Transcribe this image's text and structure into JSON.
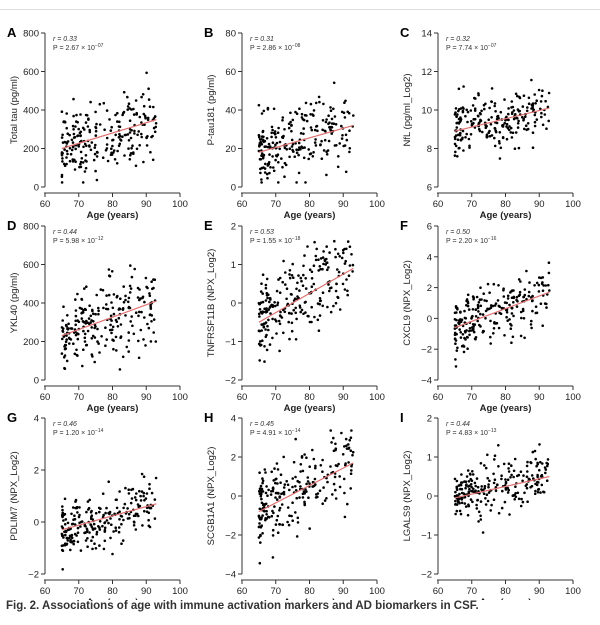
{
  "caption": {
    "label": "Fig. 2.",
    "text": "Associations of age with immune activation markers and AD biomarkers in CSF."
  },
  "colors": {
    "points": "#000000",
    "trend_line": "#e07070",
    "axes": "#333333"
  },
  "chart_data": [
    {
      "panel": "A",
      "type": "scatter",
      "xlabel": "Age (years)",
      "ylabel": "Total tau (pg/ml)",
      "xlim": [
        60,
        100
      ],
      "xticks": [
        60,
        70,
        80,
        90,
        100
      ],
      "ylim": [
        0,
        800
      ],
      "yticks": [
        0,
        200,
        400,
        600,
        800
      ],
      "r": "r = 0.33",
      "p": "P = 2.67 × 10",
      "p_exp": "−07",
      "trend": {
        "x": [
          65,
          93
        ],
        "y": [
          200,
          350
        ]
      },
      "spread": 90
    },
    {
      "panel": "B",
      "type": "scatter",
      "xlabel": "Age (years)",
      "ylabel": "P-tau181 (pg/ml)",
      "xlim": [
        60,
        100
      ],
      "xticks": [
        60,
        70,
        80,
        90,
        100
      ],
      "ylim": [
        0,
        80
      ],
      "yticks": [
        0,
        20,
        40,
        60,
        80
      ],
      "r": "r = 0.31",
      "p": "P = 2.86 × 10",
      "p_exp": "−08",
      "trend": {
        "x": [
          65,
          93
        ],
        "y": [
          18,
          32
        ]
      },
      "spread": 9
    },
    {
      "panel": "C",
      "type": "scatter",
      "xlabel": "Age (years)",
      "ylabel": "NfL (pg/ml_Log2)",
      "xlim": [
        60,
        100
      ],
      "xticks": [
        60,
        70,
        80,
        90,
        100
      ],
      "ylim": [
        6,
        14
      ],
      "yticks": [
        6,
        8,
        10,
        12,
        14
      ],
      "r": "r = 0.32",
      "p": "P = 7.74 × 10",
      "p_exp": "−07",
      "trend": {
        "x": [
          65,
          93
        ],
        "y": [
          8.9,
          10.1
        ]
      },
      "spread": 0.7
    },
    {
      "panel": "D",
      "type": "scatter",
      "xlabel": "Age (years)",
      "ylabel": "YKL40 (pg/ml)",
      "xlim": [
        60,
        100
      ],
      "xticks": [
        60,
        70,
        80,
        90,
        100
      ],
      "ylim": [
        0,
        800
      ],
      "yticks": [
        0,
        200,
        400,
        600,
        800
      ],
      "r": "r = 0.44",
      "p": "P = 5.98 × 10",
      "p_exp": "−12",
      "trend": {
        "x": [
          65,
          93
        ],
        "y": [
          230,
          410
        ]
      },
      "spread": 100
    },
    {
      "panel": "E",
      "type": "scatter",
      "xlabel": "Age (years)",
      "ylabel": "TNFRSF11B (NPX_Log2)",
      "xlim": [
        60,
        100
      ],
      "xticks": [
        60,
        70,
        80,
        90,
        100
      ],
      "ylim": [
        -2,
        2
      ],
      "yticks": [
        -2,
        -1,
        0,
        1,
        2
      ],
      "r": "r = 0.53",
      "p": "P = 1.55 × 10",
      "p_exp": "−18",
      "trend": {
        "x": [
          65,
          93
        ],
        "y": [
          -0.5,
          0.9
        ]
      },
      "spread": 0.55
    },
    {
      "panel": "F",
      "type": "scatter",
      "xlabel": "Age (years)",
      "ylabel": "CXCL9 (NPX_Log2)",
      "xlim": [
        60,
        100
      ],
      "xticks": [
        60,
        70,
        80,
        90,
        100
      ],
      "ylim": [
        -4,
        6
      ],
      "yticks": [
        -4,
        -2,
        0,
        2,
        4,
        6
      ],
      "r": "r = 0.50",
      "p": "P = 2.20 × 10",
      "p_exp": "−16",
      "trend": {
        "x": [
          65,
          93
        ],
        "y": [
          -0.6,
          1.7
        ]
      },
      "spread": 0.9
    },
    {
      "panel": "G",
      "type": "scatter",
      "xlabel": "Age (years)",
      "ylabel": "PDLIM7 (NPX_Log2)",
      "xlim": [
        60,
        100
      ],
      "xticks": [
        60,
        70,
        80,
        90,
        100
      ],
      "ylim": [
        -2,
        4
      ],
      "yticks": [
        -2,
        0,
        2,
        4
      ],
      "r": "r = 0.46",
      "p": "P = 1.20 × 10",
      "p_exp": "−14",
      "trend": {
        "x": [
          65,
          93
        ],
        "y": [
          -0.3,
          0.7
        ]
      },
      "spread": 0.5
    },
    {
      "panel": "H",
      "type": "scatter",
      "xlabel": "Age (years)",
      "ylabel": "SCGB1A1 (NPX_Log2)",
      "xlim": [
        60,
        100
      ],
      "xticks": [
        60,
        70,
        80,
        90,
        100
      ],
      "ylim": [
        -4,
        4
      ],
      "yticks": [
        -4,
        -2,
        0,
        2,
        4
      ],
      "r": "r = 0.45",
      "p": "P = 4.91 × 10",
      "p_exp": "−14",
      "trend": {
        "x": [
          65,
          93
        ],
        "y": [
          -0.8,
          1.7
        ]
      },
      "spread": 1.1
    },
    {
      "panel": "I",
      "type": "scatter",
      "xlabel": "Age (years)",
      "ylabel": "LGALS9 (NPX_Log2)",
      "xlim": [
        60,
        100
      ],
      "xticks": [
        60,
        70,
        80,
        90,
        100
      ],
      "ylim": [
        -2,
        2
      ],
      "yticks": [
        -2,
        -1,
        0,
        1,
        2
      ],
      "r": "r = 0.44",
      "p": "P = 4.83 × 10",
      "p_exp": "−13",
      "trend": {
        "x": [
          65,
          93
        ],
        "y": [
          -0.05,
          0.5
        ]
      },
      "spread": 0.35
    }
  ]
}
